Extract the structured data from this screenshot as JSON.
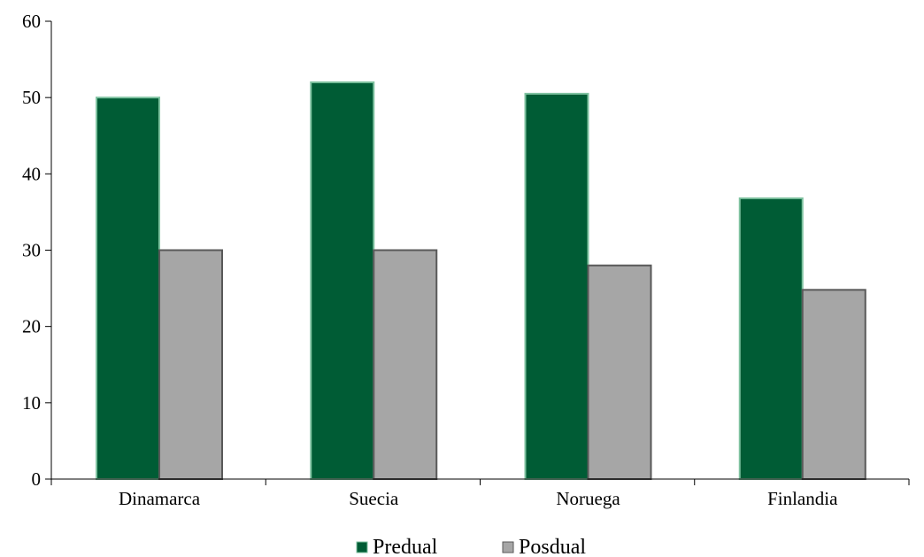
{
  "chart_data": {
    "type": "bar",
    "title": "",
    "xlabel": "",
    "ylabel": "",
    "categories": [
      "Dinamarca",
      "Suecia",
      "Noruega",
      "Finlandia"
    ],
    "series": [
      {
        "name": "Predual",
        "values": [
          50,
          52,
          50.5,
          36.8
        ],
        "color": "#005c35",
        "edge": "#7fc2a0"
      },
      {
        "name": "Posdual",
        "values": [
          30,
          30,
          28,
          24.8
        ],
        "color": "#a6a6a6",
        "edge": "#595959"
      }
    ],
    "ylim": [
      0,
      60
    ],
    "yticks": [
      0,
      10,
      20,
      30,
      40,
      50,
      60
    ],
    "ytick_labels": [
      "0",
      "10",
      "20",
      "30",
      "40",
      "50",
      "60"
    ],
    "grid": false,
    "legend_position": "bottom"
  }
}
